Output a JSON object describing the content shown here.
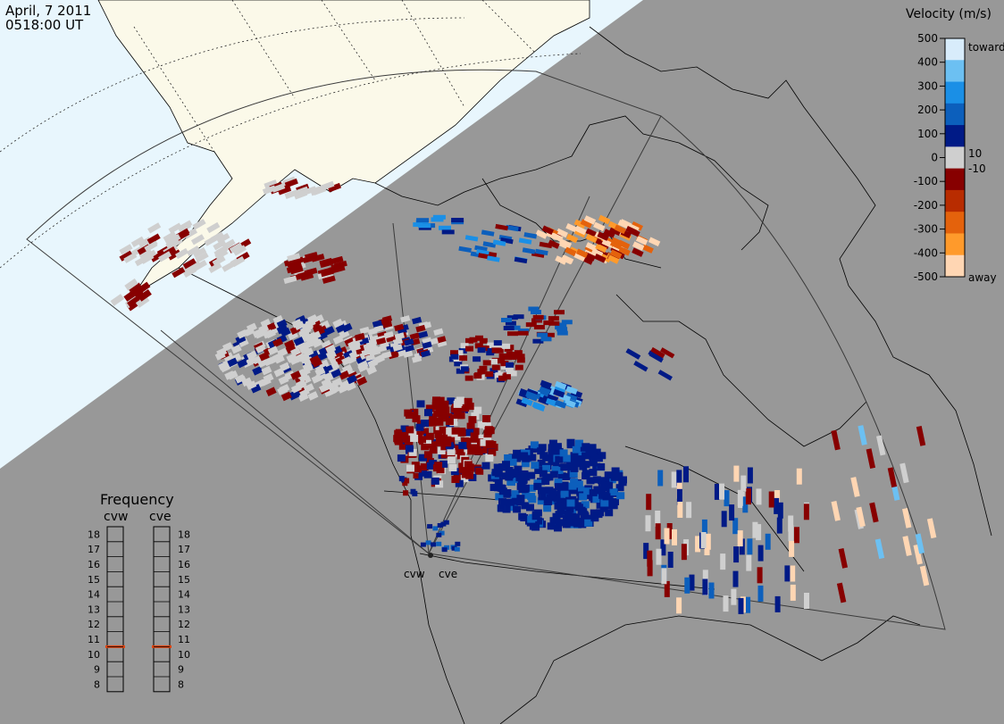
{
  "header": {
    "date": "April, 7 2011",
    "time": "0518:00 UT"
  },
  "velocity_scale": {
    "title": "Velocity (m/s)",
    "ticks": [
      "500",
      "400",
      "300",
      "200",
      "100",
      "0",
      "-100",
      "-200",
      "-300",
      "-400",
      "-500"
    ],
    "side_labels": {
      "toward": "toward",
      "away": "away",
      "pos_threshold": "10",
      "neg_threshold": "-10"
    },
    "colors": [
      "#d8ecfb",
      "#6cc0f2",
      "#1a8fe6",
      "#0c5fbc",
      "#001a86",
      "#cfcfcf",
      "#870000",
      "#b82c00",
      "#e4620c",
      "#ff9a2b",
      "#ffd6b3"
    ]
  },
  "frequency": {
    "title": "Frequency",
    "stations": [
      {
        "name": "cvw",
        "selected": "11"
      },
      {
        "name": "cve",
        "selected": "11"
      }
    ],
    "levels": [
      "18",
      "17",
      "16",
      "15",
      "14",
      "13",
      "12",
      "11",
      "10",
      "9",
      "8"
    ],
    "marker_color": "#e0440e"
  },
  "radars": [
    {
      "name": "cvw"
    },
    {
      "name": "cve"
    }
  ]
}
